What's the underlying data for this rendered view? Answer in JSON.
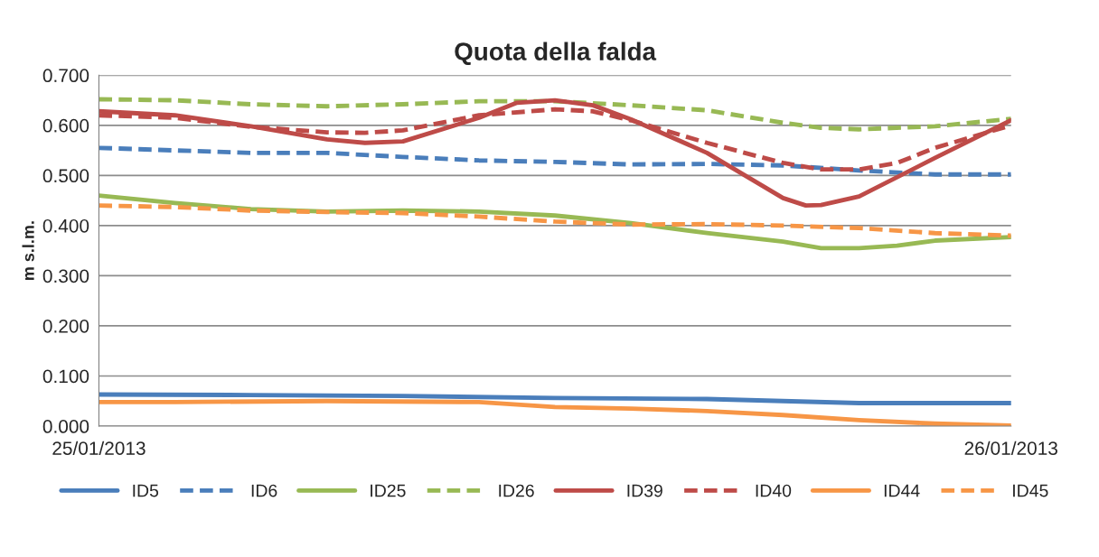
{
  "chart_data": {
    "type": "line",
    "title": "Quota della falda",
    "ylabel": "m s.l.m.",
    "xlim": [
      "2013-01-25T00:00",
      "2013-01-26T00:00"
    ],
    "xticks": [
      {
        "value": "2013-01-25T00:00",
        "label": "25/01/2013"
      },
      {
        "value": "2013-01-26T00:00",
        "label": "26/01/2013"
      }
    ],
    "ylim": [
      0,
      0.7
    ],
    "yticks": [
      {
        "value": 0,
        "label": "0.000"
      },
      {
        "value": 0.1,
        "label": "0.100"
      },
      {
        "value": 0.2,
        "label": "0.200"
      },
      {
        "value": 0.3,
        "label": "0.300"
      },
      {
        "value": 0.4,
        "label": "0.400"
      },
      {
        "value": 0.5,
        "label": "0.500"
      },
      {
        "value": 0.6,
        "label": "0.600"
      },
      {
        "value": 0.7,
        "label": "0.700"
      }
    ],
    "grid": "y",
    "legend": "bottom",
    "marker": "none",
    "series": [
      {
        "name": "ID5",
        "color": "#4a7ebb",
        "line_style": "solid",
        "x": [
          "2013-01-25T00:00",
          "2013-01-25T04:00",
          "2013-01-25T08:00",
          "2013-01-25T12:00",
          "2013-01-25T16:00",
          "2013-01-25T20:00",
          "2013-01-26T00:00"
        ],
        "values": [
          0.063,
          0.062,
          0.06,
          0.056,
          0.054,
          0.046,
          0.046
        ]
      },
      {
        "name": "ID6",
        "color": "#4a7ebb",
        "line_style": "dashed",
        "x": [
          "2013-01-25T00:00",
          "2013-01-25T02:00",
          "2013-01-25T04:00",
          "2013-01-25T06:00",
          "2013-01-25T08:00",
          "2013-01-25T10:00",
          "2013-01-25T12:00",
          "2013-01-25T14:00",
          "2013-01-25T16:00",
          "2013-01-25T18:00",
          "2013-01-25T20:00",
          "2013-01-25T22:00",
          "2013-01-26T00:00"
        ],
        "values": [
          0.555,
          0.55,
          0.545,
          0.545,
          0.537,
          0.53,
          0.527,
          0.522,
          0.523,
          0.52,
          0.51,
          0.502,
          0.502
        ]
      },
      {
        "name": "ID25",
        "color": "#98b954",
        "line_style": "solid",
        "x": [
          "2013-01-25T00:00",
          "2013-01-25T02:00",
          "2013-01-25T04:00",
          "2013-01-25T06:00",
          "2013-01-25T08:00",
          "2013-01-25T10:00",
          "2013-01-25T12:00",
          "2013-01-25T14:00",
          "2013-01-25T16:00",
          "2013-01-25T18:00",
          "2013-01-25T19:00",
          "2013-01-25T20:00",
          "2013-01-25T21:00",
          "2013-01-25T22:00",
          "2013-01-26T00:00"
        ],
        "values": [
          0.46,
          0.445,
          0.433,
          0.428,
          0.43,
          0.428,
          0.42,
          0.405,
          0.385,
          0.368,
          0.355,
          0.355,
          0.36,
          0.37,
          0.377
        ]
      },
      {
        "name": "ID26",
        "color": "#98b954",
        "line_style": "dashed",
        "x": [
          "2013-01-25T00:00",
          "2013-01-25T02:00",
          "2013-01-25T04:00",
          "2013-01-25T06:00",
          "2013-01-25T08:00",
          "2013-01-25T10:00",
          "2013-01-25T12:00",
          "2013-01-25T14:00",
          "2013-01-25T16:00",
          "2013-01-25T18:00",
          "2013-01-25T19:00",
          "2013-01-25T20:00",
          "2013-01-25T22:00",
          "2013-01-26T00:00"
        ],
        "values": [
          0.652,
          0.65,
          0.642,
          0.638,
          0.642,
          0.648,
          0.648,
          0.64,
          0.63,
          0.605,
          0.595,
          0.592,
          0.598,
          0.613
        ]
      },
      {
        "name": "ID39",
        "color": "#be4b48",
        "line_style": "solid",
        "x": [
          "2013-01-25T00:00",
          "2013-01-25T02:00",
          "2013-01-25T04:00",
          "2013-01-25T06:00",
          "2013-01-25T07:00",
          "2013-01-25T08:00",
          "2013-01-25T10:00",
          "2013-01-25T11:00",
          "2013-01-25T12:00",
          "2013-01-25T13:00",
          "2013-01-25T14:00",
          "2013-01-25T16:00",
          "2013-01-25T18:00",
          "2013-01-25T18:36",
          "2013-01-25T19:00",
          "2013-01-25T20:00",
          "2013-01-25T22:00",
          "2013-01-26T00:00"
        ],
        "values": [
          0.628,
          0.62,
          0.598,
          0.572,
          0.565,
          0.568,
          0.615,
          0.645,
          0.65,
          0.64,
          0.612,
          0.545,
          0.455,
          0.44,
          0.441,
          0.458,
          0.535,
          0.61
        ]
      },
      {
        "name": "ID40",
        "color": "#be4b48",
        "line_style": "dashed",
        "x": [
          "2013-01-25T00:00",
          "2013-01-25T02:00",
          "2013-01-25T04:00",
          "2013-01-25T06:00",
          "2013-01-25T07:00",
          "2013-01-25T08:00",
          "2013-01-25T10:00",
          "2013-01-25T12:00",
          "2013-01-25T13:00",
          "2013-01-25T14:00",
          "2013-01-25T16:00",
          "2013-01-25T18:00",
          "2013-01-25T19:00",
          "2013-01-25T20:00",
          "2013-01-25T21:00",
          "2013-01-25T22:00",
          "2013-01-26T00:00"
        ],
        "values": [
          0.62,
          0.615,
          0.597,
          0.586,
          0.585,
          0.59,
          0.62,
          0.632,
          0.628,
          0.61,
          0.565,
          0.525,
          0.512,
          0.512,
          0.525,
          0.555,
          0.6
        ]
      },
      {
        "name": "ID44",
        "color": "#f79646",
        "line_style": "solid",
        "x": [
          "2013-01-25T00:00",
          "2013-01-25T02:00",
          "2013-01-25T06:00",
          "2013-01-25T10:00",
          "2013-01-25T12:00",
          "2013-01-25T14:00",
          "2013-01-25T16:00",
          "2013-01-25T18:00",
          "2013-01-25T20:00",
          "2013-01-25T22:00",
          "2013-01-26T00:00"
        ],
        "values": [
          0.048,
          0.048,
          0.05,
          0.048,
          0.038,
          0.035,
          0.03,
          0.022,
          0.012,
          0.005,
          0.001
        ]
      },
      {
        "name": "ID45",
        "color": "#f79646",
        "line_style": "dashed",
        "x": [
          "2013-01-25T00:00",
          "2013-01-25T02:00",
          "2013-01-25T04:00",
          "2013-01-25T06:00",
          "2013-01-25T08:00",
          "2013-01-25T10:00",
          "2013-01-25T12:00",
          "2013-01-25T14:00",
          "2013-01-25T16:00",
          "2013-01-25T18:00",
          "2013-01-25T20:00",
          "2013-01-25T22:00",
          "2013-01-26T00:00"
        ],
        "values": [
          0.44,
          0.437,
          0.43,
          0.427,
          0.425,
          0.418,
          0.408,
          0.402,
          0.403,
          0.4,
          0.395,
          0.385,
          0.38
        ]
      }
    ]
  }
}
